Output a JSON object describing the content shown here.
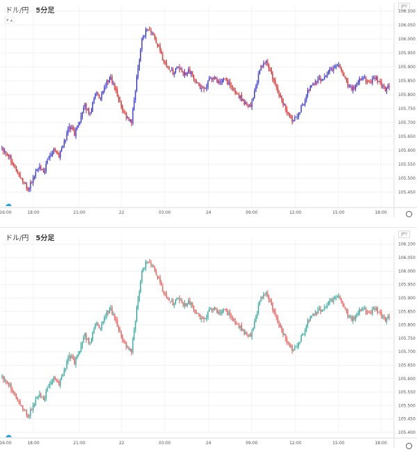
{
  "chart_data": [
    {
      "type": "candlestick",
      "title": "ドル/円",
      "timeframe": "5分足",
      "currency": "JPY",
      "style": "red-blue",
      "ylim": [
        105.4,
        106.12
      ],
      "yticks": [
        "106.100",
        "106.050",
        "106.000",
        "105.950",
        "105.900",
        "105.850",
        "105.800",
        "105.750",
        "105.700",
        "105.650",
        "105.600",
        "105.550",
        "105.500",
        "105.450"
      ],
      "xticks": [
        "16:00",
        "18:00",
        "21:00",
        "22",
        "03:00",
        "24",
        "09:00",
        "12:00",
        "15:00",
        "18:00"
      ],
      "series_close": [
        105.61,
        105.59,
        105.56,
        105.52,
        105.49,
        105.46,
        105.5,
        105.54,
        105.52,
        105.57,
        105.61,
        105.58,
        105.63,
        105.69,
        105.66,
        105.71,
        105.76,
        105.73,
        105.81,
        105.78,
        105.84,
        105.86,
        105.81,
        105.76,
        105.72,
        105.7,
        105.86,
        106.0,
        106.04,
        106.02,
        105.98,
        105.93,
        105.9,
        105.88,
        105.9,
        105.87,
        105.89,
        105.86,
        105.83,
        105.82,
        105.85,
        105.86,
        105.84,
        105.86,
        105.83,
        105.81,
        105.79,
        105.77,
        105.76,
        105.83,
        105.9,
        105.92,
        105.87,
        105.82,
        105.78,
        105.74,
        105.71,
        105.73,
        105.76,
        105.81,
        105.84,
        105.85,
        105.86,
        105.88,
        105.9,
        105.91,
        105.87,
        105.83,
        105.82,
        105.85,
        105.86,
        105.84,
        105.86,
        105.84,
        105.82,
        105.83
      ]
    },
    {
      "type": "candlestick",
      "title": "ドル/円",
      "timeframe": "5分足",
      "currency": "JPY",
      "style": "green-red",
      "ylim": [
        105.4,
        106.12
      ],
      "yticks": [
        "106.100",
        "106.050",
        "106.000",
        "105.950",
        "105.900",
        "105.850",
        "105.800",
        "105.750",
        "105.700",
        "105.650",
        "105.600",
        "105.550",
        "105.500",
        "105.450",
        "105.400"
      ],
      "xticks": [
        "16:00",
        "18:00",
        "21:00",
        "22",
        "03:00",
        "24",
        "09:00",
        "12:00",
        "15:00",
        "18:00"
      ],
      "series_close": [
        105.61,
        105.59,
        105.56,
        105.52,
        105.49,
        105.46,
        105.5,
        105.54,
        105.52,
        105.57,
        105.61,
        105.58,
        105.63,
        105.69,
        105.66,
        105.71,
        105.76,
        105.73,
        105.81,
        105.78,
        105.84,
        105.86,
        105.81,
        105.76,
        105.72,
        105.7,
        105.86,
        106.0,
        106.04,
        106.02,
        105.98,
        105.93,
        105.9,
        105.88,
        105.9,
        105.87,
        105.89,
        105.86,
        105.83,
        105.82,
        105.85,
        105.86,
        105.84,
        105.86,
        105.83,
        105.81,
        105.79,
        105.77,
        105.76,
        105.83,
        105.9,
        105.92,
        105.87,
        105.82,
        105.78,
        105.74,
        105.71,
        105.73,
        105.76,
        105.81,
        105.84,
        105.85,
        105.86,
        105.88,
        105.9,
        105.91,
        105.87,
        105.83,
        105.82,
        105.85,
        105.86,
        105.84,
        105.86,
        105.84,
        105.82,
        105.83
      ]
    }
  ]
}
